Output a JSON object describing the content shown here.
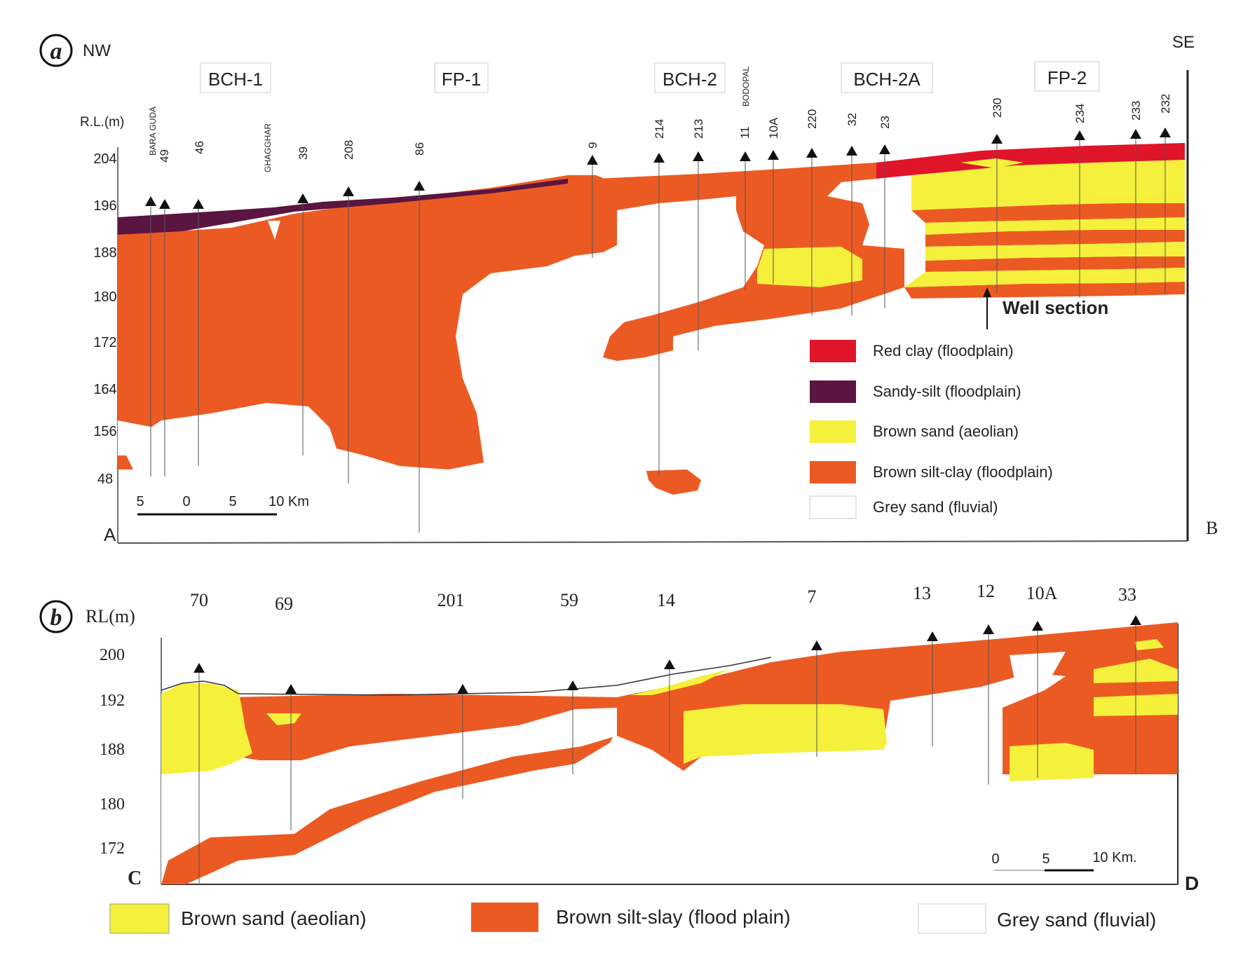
{
  "panel_a": {
    "letter": "a",
    "dir_left": "NW",
    "dir_right": "SE",
    "rl_label": "R.L.(m)",
    "corner_left": "A",
    "corner_right": "B",
    "zones": [
      "BCH-1",
      "FP-1",
      "BCH-2",
      "BCH-2A",
      "FP-2"
    ],
    "y_ticks": [
      "204",
      "196",
      "188",
      "180",
      "172",
      "164",
      "156",
      "48"
    ],
    "place_names": [
      "BARA GUDA",
      "GHAGGHAR",
      "BODOPAL"
    ],
    "wells": [
      "49",
      "46",
      "39",
      "208",
      "86",
      "9",
      "214",
      "213",
      "11",
      "10A",
      "220",
      "32",
      "23",
      "230",
      "234",
      "233",
      "232"
    ],
    "scale": {
      "ticks": [
        "5",
        "0",
        "5"
      ],
      "end": "10 Km"
    },
    "well_section_label": "Well section",
    "legend": [
      {
        "label": "Red clay (floodplain)",
        "color": "#e0152a"
      },
      {
        "label": "Sandy-silt (floodplain)",
        "color": "#5a1540"
      },
      {
        "label": "Brown sand (aeolian)",
        "color": "#f5f03c"
      },
      {
        "label": "Brown silt-clay (floodplain)",
        "color": "#ec5a23"
      },
      {
        "label": "Grey sand (fluvial)",
        "color": "#ffffff"
      }
    ]
  },
  "panel_b": {
    "letter": "b",
    "rl_label": "RL(m)",
    "corner_left": "C",
    "corner_right": "D",
    "y_ticks": [
      "200",
      "192",
      "188",
      "180",
      "172"
    ],
    "wells": [
      "70",
      "69",
      "201",
      "59",
      "14",
      "7",
      "13",
      "12",
      "10A",
      "33"
    ],
    "scale": {
      "ticks": [
        "0",
        "5"
      ],
      "end": "10 Km."
    },
    "legend": [
      {
        "label": "Brown sand (aeolian)",
        "color": "#f5f03c"
      },
      {
        "label": "Brown silt-slay (flood plain)",
        "color": "#ec5a23"
      },
      {
        "label": "Grey sand (fluvial)",
        "color": "#ffffff"
      }
    ]
  }
}
